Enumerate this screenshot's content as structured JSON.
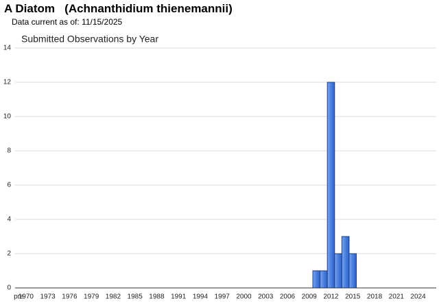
{
  "header": {
    "title": "A Diatom   (Achnanthidium thienemannii)",
    "subtitle": "Data current as of: 11/15/2025"
  },
  "chart_data": {
    "type": "bar",
    "title": "Submitted Observations by Year",
    "categories": [
      "pre",
      "1970",
      null,
      null,
      "1973",
      null,
      null,
      "1976",
      null,
      null,
      "1979",
      null,
      null,
      "1982",
      null,
      null,
      "1985",
      null,
      null,
      "1988",
      null,
      null,
      "1991",
      null,
      null,
      "1994",
      null,
      null,
      "1997",
      null,
      null,
      "2000",
      null,
      null,
      "2003",
      null,
      null,
      "2006",
      null,
      null,
      "2009",
      null,
      null,
      "2012",
      null,
      null,
      "2015",
      null,
      null,
      "2018",
      null,
      null,
      "2021",
      null,
      null,
      "2024",
      null,
      null
    ],
    "values": [
      0,
      0,
      0,
      0,
      0,
      0,
      0,
      0,
      0,
      0,
      0,
      0,
      0,
      0,
      0,
      0,
      0,
      0,
      0,
      0,
      0,
      0,
      0,
      0,
      0,
      0,
      0,
      0,
      0,
      0,
      0,
      0,
      0,
      0,
      0,
      0,
      0,
      0,
      0,
      0,
      0,
      1,
      1,
      12,
      2,
      3,
      2,
      0,
      0,
      0,
      0,
      0,
      0,
      0,
      0,
      0,
      0,
      0
    ],
    "color": "#4a80e0",
    "ylim": [
      0,
      14
    ],
    "yticks": [
      0,
      2,
      4,
      6,
      8,
      10,
      12,
      14
    ],
    "grid": true
  }
}
